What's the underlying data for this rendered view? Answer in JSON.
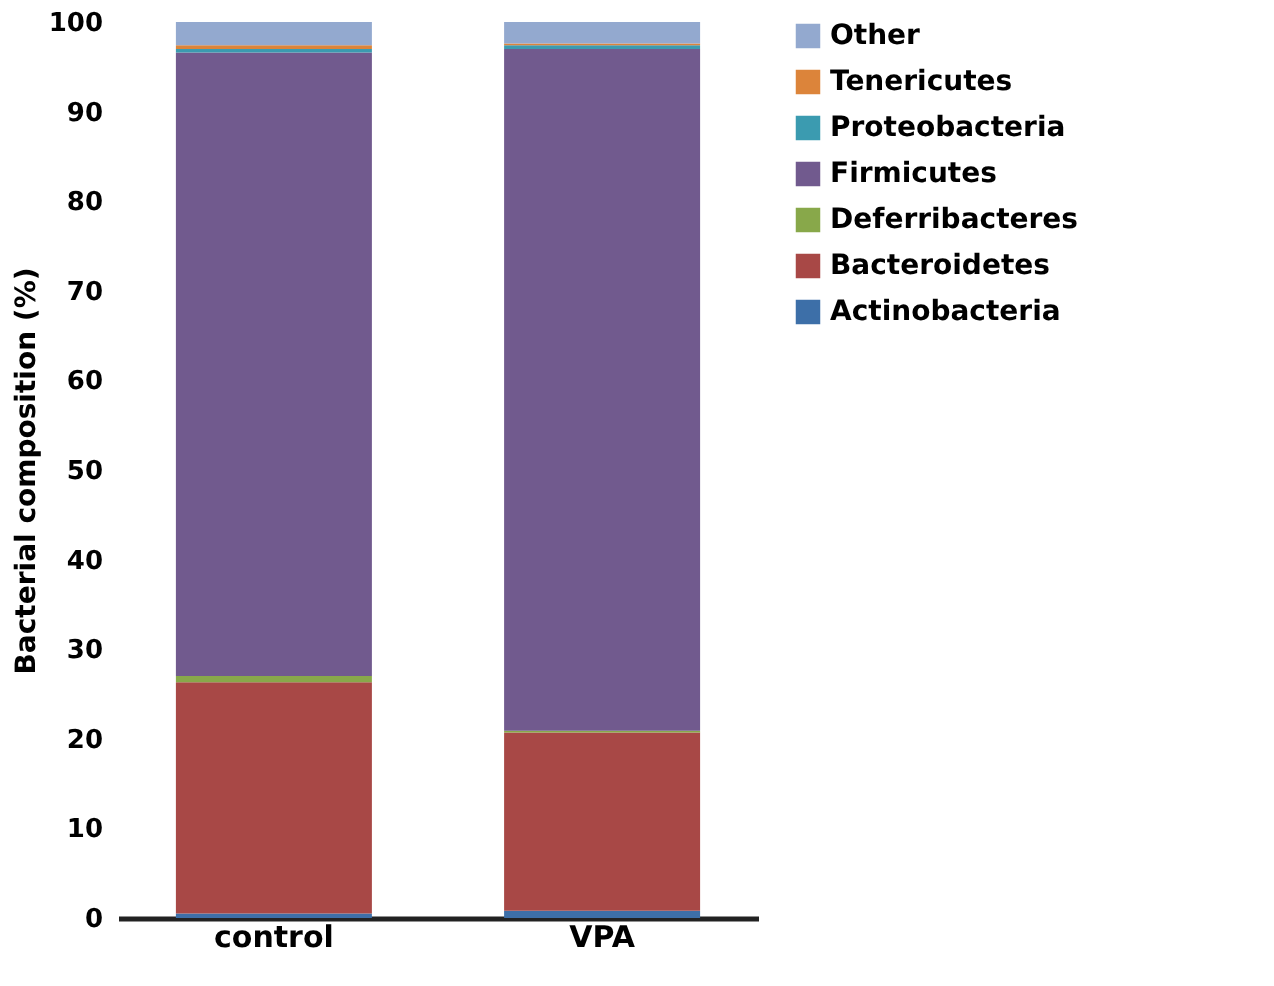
{
  "chart_data": {
    "type": "bar",
    "stacked": true,
    "ylabel": "Bacterial composition (%)",
    "categories": [
      "control",
      "VPA"
    ],
    "series": [
      {
        "name": "Actinobacteria",
        "color": "#3d6fa8",
        "values": [
          0.5,
          0.8
        ]
      },
      {
        "name": "Bacteroidetes",
        "color": "#a84846",
        "values": [
          25.8,
          19.9
        ]
      },
      {
        "name": "Deferribacteres",
        "color": "#88a84a",
        "values": [
          0.7,
          0.2
        ]
      },
      {
        "name": "Firmicutes",
        "color": "#715a8e",
        "values": [
          69.6,
          76.1
        ]
      },
      {
        "name": "Proteobacteria",
        "color": "#3b9bb0",
        "values": [
          0.4,
          0.4
        ]
      },
      {
        "name": "Tenericutes",
        "color": "#dc843a",
        "values": [
          0.4,
          0.2
        ]
      },
      {
        "name": "Other",
        "color": "#93a9cf",
        "values": [
          2.6,
          2.4
        ]
      }
    ],
    "ylim": [
      0,
      100
    ],
    "yticks": [
      0,
      10,
      20,
      30,
      40,
      50,
      60,
      70,
      80,
      90,
      100
    ],
    "grid": false,
    "legend": "right"
  }
}
